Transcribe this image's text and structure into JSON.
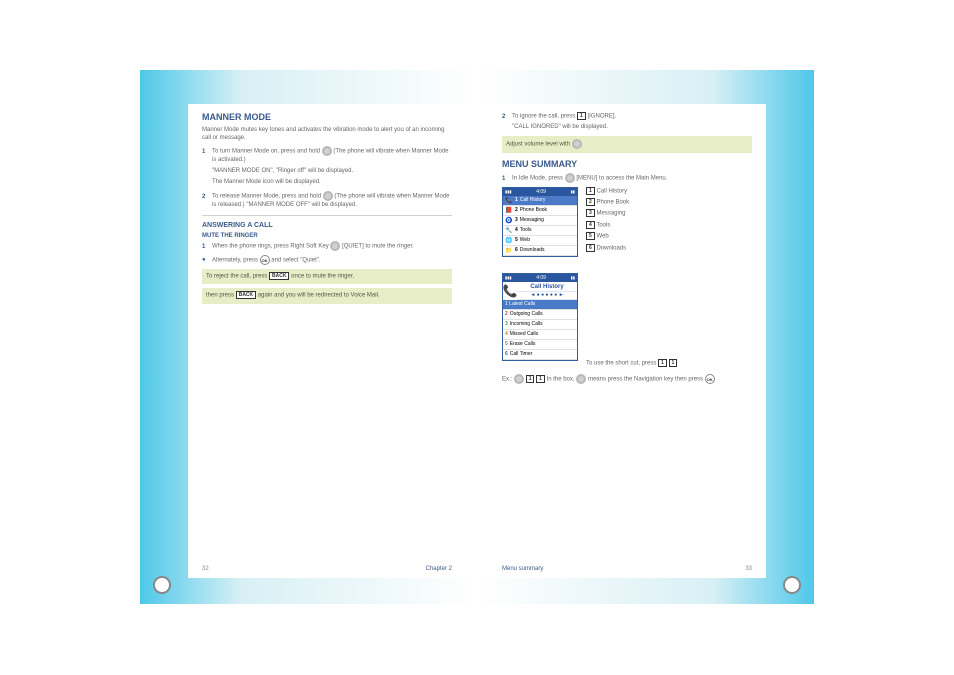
{
  "frame": {
    "gradient_colors": [
      "#4ec8e8",
      "#d8f0f5",
      "#ffffff"
    ],
    "ring_border": "#888888"
  },
  "left": {
    "title": "MANNER MODE",
    "p1": "Manner Mode mutes key tones and activates the vibration mode to alert you of an incoming call or message.",
    "step1_pre": "To turn Manner Mode on, press and hold",
    "step1_nav": "nav-down",
    "step1_post": "(The phone will vibrate when Manner Mode is activated.)",
    "step1b": "\"MANNER MODE ON\", \"Ringer off\" will be displayed.",
    "step1c": "The Manner Mode icon will be displayed.",
    "step2_pre": "To release Manner Mode, press and hold",
    "step2_nav": "nav-down",
    "step2_post": "(The phone will vibrate when Manner Mode is released.) \"MANNER MODE OFF\" will be displayed.",
    "section2_title": "ANSWERING A CALL",
    "subhead": "MUTE THE RINGER",
    "step_a_pre": "When the phone rings, press Right Soft Key",
    "step_a_key": "[QUIET]",
    "step_a_post": "to mute the ringer.",
    "step_b_pre": "Alternately, press",
    "step_b_ok": "ok",
    "step_b_post": "and select \"Quiet\".",
    "note1_pre": "To reject the call, press",
    "note1_key": "BACK",
    "note1_post": "once to mute the ringer,",
    "note2_pre": "then press",
    "note2_key": "BACK",
    "note2_post": "again and you will be redirected to Voice Mail.",
    "page": "32",
    "chapter": "Chapter 2"
  },
  "right": {
    "step1_pre": "To ignore the call, press",
    "step1_key": "1",
    "step1_icon": "softkey",
    "step1_post": "[IGNORE].",
    "step1b": "\"CALL IGNORED\" will be displayed.",
    "note_pre": "Adjust volume level with",
    "note_nav": "nav",
    "note_post": "",
    "section_title": "MENU SUMMARY",
    "step_m_pre": "In Idle Mode, press",
    "step_m_skey": "softkey",
    "step_m_key1": "1",
    "step_m_post": "[MENU] to access the Main Menu.",
    "phone1": {
      "status_time": "4:09",
      "rows": [
        {
          "num": "1",
          "label": "Call History",
          "icon": "📞",
          "selected": true,
          "icon_color": "#5a8cd0"
        },
        {
          "num": "2",
          "label": "Phone Book",
          "icon": "📕",
          "selected": false,
          "icon_color": "#c04040"
        },
        {
          "num": "3",
          "label": "Messaging",
          "icon": "🧿",
          "selected": false,
          "icon_color": "#d08030"
        },
        {
          "num": "4",
          "label": "Tools",
          "icon": "🔧",
          "selected": false,
          "icon_color": "#808080"
        },
        {
          "num": "5",
          "label": "Web",
          "icon": "🌐",
          "selected": false,
          "icon_color": "#40a040"
        },
        {
          "num": "6",
          "label": "Downloads",
          "icon": "📁",
          "selected": false,
          "icon_color": "#208060"
        }
      ]
    },
    "menu_items": [
      {
        "key": "1",
        "label": "Call History"
      },
      {
        "key": "2",
        "label": "Phone Book"
      },
      {
        "key": "3",
        "label": "Messaging"
      },
      {
        "key": "4",
        "label": "Tools"
      },
      {
        "key": "5",
        "label": "Web"
      },
      {
        "key": "6",
        "label": "Downloads"
      }
    ],
    "phone2": {
      "status_time": "4:09",
      "title": "Call History",
      "subtitle_label": "1 Latest Calls",
      "rows": [
        {
          "num": "2",
          "label": "Outgoing Calls",
          "color": "#c04040"
        },
        {
          "num": "3",
          "label": "Incoming Calls",
          "color": "#40a040"
        },
        {
          "num": "4",
          "label": "Missed Calls",
          "color": "#d08030"
        },
        {
          "num": "5",
          "label": "Erase Calls",
          "color": "#808080"
        },
        {
          "num": "6",
          "label": "Call Timer",
          "color": "#4060c0"
        }
      ]
    },
    "footer1_pre": "To use the short cut, press",
    "footer1_k1": "1",
    "footer1_k2": "1",
    "footer2_pre": "Ex.: ",
    "footer2_skey": "softkey",
    "footer2_k1": "1",
    "footer2_k2": "1",
    "footer2_mid": " In the box,",
    "footer2_nav": "nav",
    "footer2_post": " means press the Navigation key then press ",
    "footer2_ok": "ok",
    "footer2_post2": "",
    "page": "33",
    "chapter": "Menu summary"
  }
}
